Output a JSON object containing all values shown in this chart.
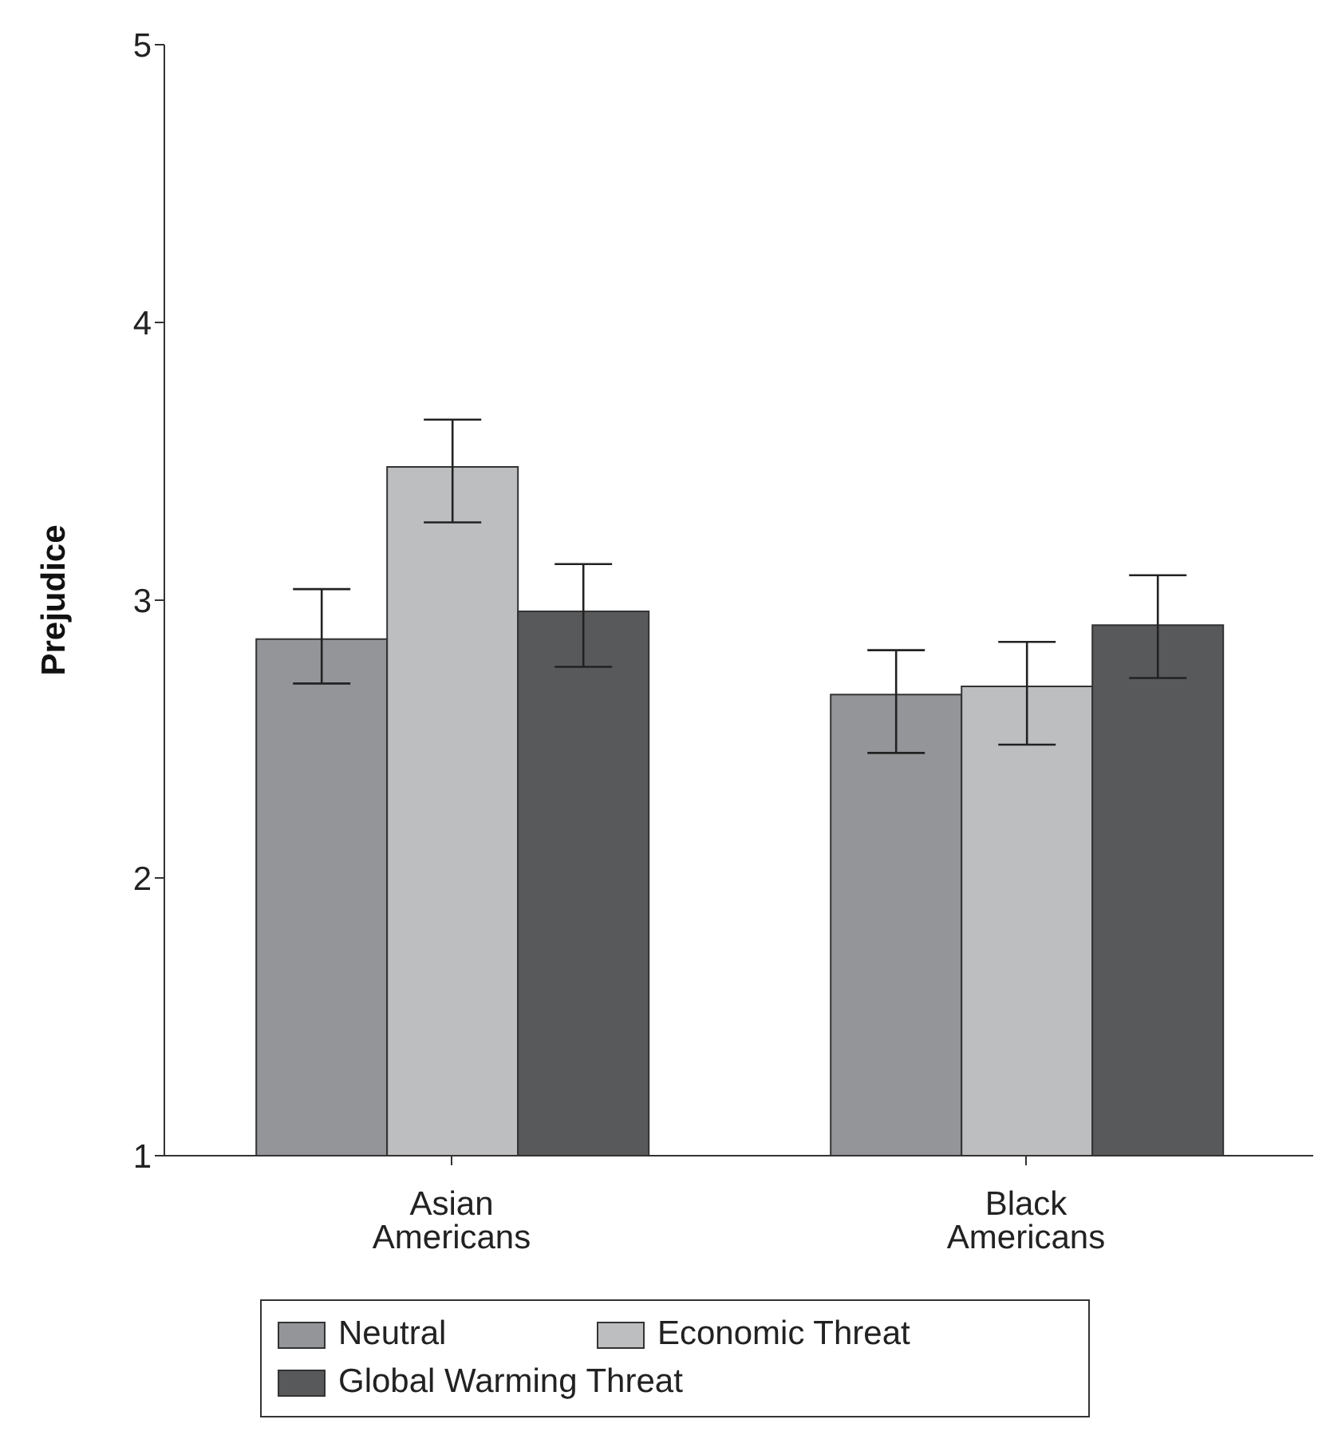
{
  "chart_data": {
    "type": "bar",
    "ylabel": "Prejudice",
    "categories": [
      "Asian Americans",
      "Black Americans"
    ],
    "series": [
      {
        "name": "Neutral",
        "color": "#939598",
        "values": [
          2.86,
          2.66
        ],
        "errors": [
          [
            2.7,
            3.04
          ],
          [
            2.45,
            2.82
          ]
        ]
      },
      {
        "name": "Economic Threat",
        "color": "#bcbec0",
        "values": [
          3.48,
          2.69
        ],
        "errors": [
          [
            3.28,
            3.65
          ],
          [
            2.48,
            2.85
          ]
        ]
      },
      {
        "name": "Global Warming Threat",
        "color": "#58595b",
        "values": [
          2.96,
          2.91
        ],
        "errors": [
          [
            2.76,
            3.13
          ],
          [
            2.72,
            3.09
          ]
        ]
      }
    ],
    "ylim": [
      1,
      5
    ],
    "yticks": [
      1,
      2,
      3,
      4,
      5
    ],
    "grid": false,
    "legend": "bottom"
  }
}
